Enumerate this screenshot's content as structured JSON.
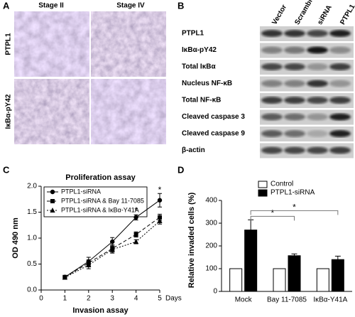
{
  "panel_a": {
    "label": "A",
    "columns": [
      "Stage II",
      "Stage IV"
    ],
    "rows": [
      "PTPL1",
      "IκBα-pY42"
    ]
  },
  "panel_b": {
    "label": "B",
    "lanes": [
      "Vector",
      "Scramble",
      "siRNA",
      "PTPL1"
    ],
    "bands": [
      "PTPL1",
      "IκBα-pY42",
      "Total IκBα",
      "Nucleus NF-κB",
      "Total NF-κB",
      "Cleaved caspase 3",
      "Cleaved caspase 9",
      "β-actin"
    ]
  },
  "chart_data": [
    {
      "type": "line",
      "panel": "C",
      "title": "Proliferation assay",
      "x_label": "Invasion assay",
      "x_unit": "Days",
      "y_label": "OD 490 nm",
      "x": [
        1,
        2,
        3,
        4,
        5
      ],
      "xlim": [
        0,
        5
      ],
      "xticks": [
        0,
        1,
        2,
        3,
        4,
        5
      ],
      "ylim": [
        0,
        2
      ],
      "yticks": [
        {
          "value": 0,
          "label": "0.0"
        },
        {
          "value": 0.5,
          "label": "0.5"
        },
        {
          "value": 1,
          "label": "1.0"
        },
        {
          "value": 1.5,
          "label": "1.5"
        },
        {
          "value": 2,
          "label": "2.0"
        }
      ],
      "series": [
        {
          "name": "PTPL1-siRNA",
          "color": "#000000",
          "marker": "circle",
          "dash": "solid",
          "values": [
            0.25,
            0.55,
            0.93,
            1.4,
            1.73
          ],
          "errors": [
            0.03,
            0.08,
            0.08,
            0.05,
            0.13
          ]
        },
        {
          "name": "PTPL1-siRNA & Bay 11-7085",
          "color": "#000000",
          "marker": "square",
          "dash": "dashed",
          "values": [
            0.25,
            0.52,
            0.8,
            1.07,
            1.4
          ],
          "errors": [
            0.03,
            0.06,
            0.07,
            0.05,
            0.06
          ]
        },
        {
          "name": "PTPL1-siRNA & IκBα-Y41A",
          "color": "#000000",
          "marker": "triangle",
          "dash": "dotted",
          "values": [
            0.24,
            0.48,
            0.78,
            0.93,
            1.33
          ],
          "errors": [
            0.03,
            0.07,
            0.07,
            0.04,
            0.06
          ]
        }
      ],
      "annotations": [
        {
          "text": "*",
          "x": 4,
          "y": 1.52
        },
        {
          "text": "*",
          "x": 5,
          "y": 1.92
        }
      ],
      "legend": "top-left"
    },
    {
      "type": "bar",
      "panel": "D",
      "y_label": "Relative invaded cells (%)",
      "categories": [
        "Mock",
        "Bay 11-7085",
        "IκBα-Y41A"
      ],
      "ylim": [
        0,
        400
      ],
      "yticks": [
        0,
        100,
        200,
        300,
        400
      ],
      "series": [
        {
          "name": "Control",
          "color": "#ffffff",
          "values": [
            100,
            100,
            100
          ]
        },
        {
          "name": "PTPL1-siRNA",
          "color": "#000000",
          "values": [
            270,
            157,
            140
          ],
          "errors": [
            45,
            8,
            15
          ]
        }
      ],
      "annotations": [
        {
          "text": "*",
          "y": 330
        },
        {
          "text": "*",
          "y": 355
        }
      ],
      "legend": "top"
    }
  ]
}
